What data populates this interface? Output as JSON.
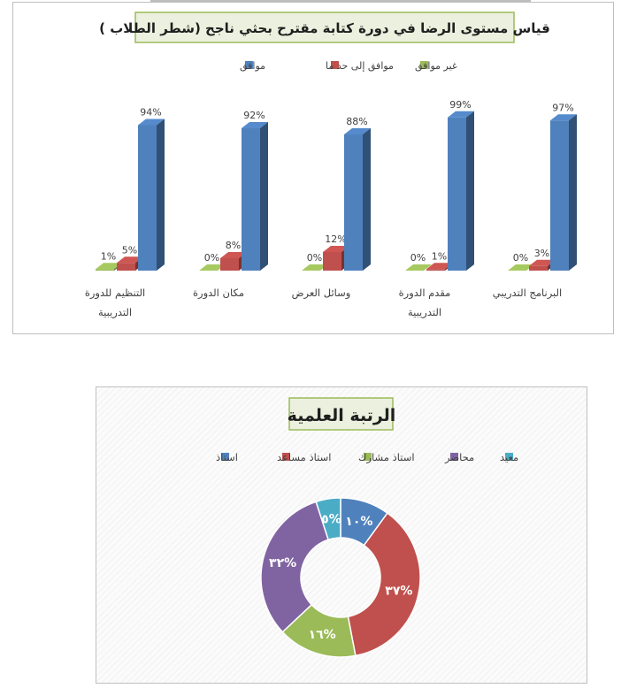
{
  "chart_data": [
    {
      "type": "bar",
      "title": "قياس مستوى الرضا في دورة كتابة مقترح بحثي ناجح (شطر الطلاب )",
      "categories": [
        [
          "التنظيم للدورة",
          "التدريبية"
        ],
        [
          "مكان الدورة"
        ],
        [
          "وسائل العرض"
        ],
        [
          "مقدم الدورة",
          "التدريبية"
        ],
        [
          "البرنامج التدريبي"
        ]
      ],
      "series": [
        {
          "name": "غير موافق",
          "color": "#9bbb59",
          "values": [
            1,
            0,
            0,
            0,
            0
          ]
        },
        {
          "name": "موافق إلى حد ما",
          "color": "#c0504d",
          "values": [
            5,
            8,
            12,
            1,
            3
          ]
        },
        {
          "name": "موافق",
          "color": "#4f81bd",
          "values": [
            94,
            92,
            88,
            99,
            97
          ]
        }
      ],
      "data_labels": [
        [
          "1%",
          "0%",
          "0%",
          "0%",
          "0%"
        ],
        [
          "5%",
          "8%",
          "12%",
          "1%",
          "3%"
        ],
        [
          "94%",
          "92%",
          "88%",
          "99%",
          "97%"
        ]
      ],
      "legend_order": [
        2,
        1,
        0
      ],
      "ylim": [
        0,
        100
      ],
      "legend_position": "top",
      "grid": false
    },
    {
      "type": "pie",
      "variant": "doughnut",
      "title": "الرتبة العلمية",
      "categories": [
        "استاذ",
        "استاذ مساعد",
        "استاذ مشارك",
        "محاضر",
        "معيد"
      ],
      "values": [
        10,
        37,
        16,
        32,
        5
      ],
      "labels": [
        "١٠%",
        "٣٧%",
        "١٦%",
        "٣٢%",
        "٥%"
      ],
      "colors": [
        "#4f81bd",
        "#c0504d",
        "#9bbb59",
        "#8064a2",
        "#4bacc6"
      ],
      "legend_position": "top"
    }
  ]
}
